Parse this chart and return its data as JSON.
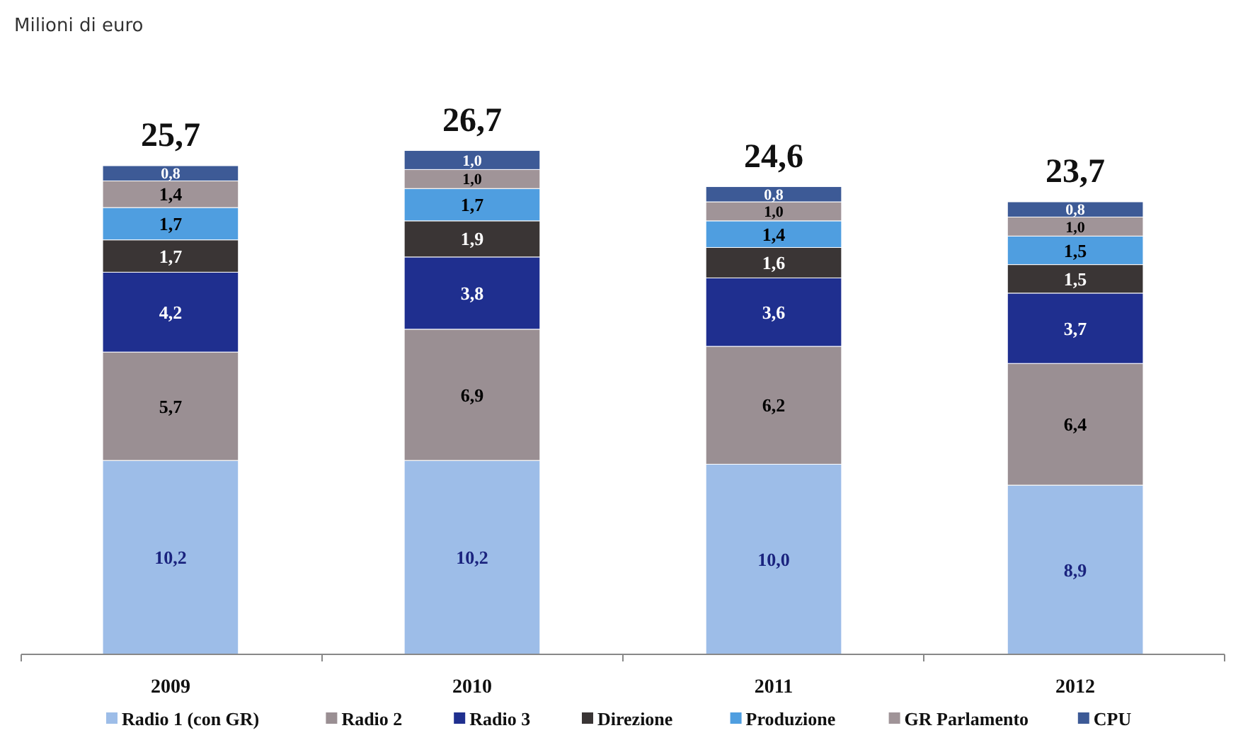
{
  "chart_data": {
    "type": "bar",
    "title": "Milioni di euro",
    "stacked": true,
    "legend": "bottom",
    "categories": [
      "2009",
      "2010",
      "2011",
      "2012"
    ],
    "series": [
      {
        "name": "Radio 1 (con GR)",
        "color": "#9dbde8",
        "values": [
          10.2,
          10.2,
          10.0,
          8.9
        ],
        "value_labels": [
          "10,2",
          "10,2",
          "10,0",
          "8,9"
        ]
      },
      {
        "name": "Radio 2",
        "color": "#9a8f93",
        "values": [
          5.7,
          6.9,
          6.2,
          6.4
        ],
        "value_labels": [
          "5,7",
          "6,9",
          "6,2",
          "6,4"
        ]
      },
      {
        "name": "Radio 3",
        "color": "#1f2f8f",
        "values": [
          4.2,
          3.8,
          3.6,
          3.7
        ],
        "value_labels": [
          "4,2",
          "3,8",
          "3,6",
          "3,7"
        ]
      },
      {
        "name": "Direzione",
        "color": "#3a3535",
        "values": [
          1.7,
          1.9,
          1.6,
          1.5
        ],
        "value_labels": [
          "1,7",
          "1,9",
          "1,6",
          "1,5"
        ]
      },
      {
        "name": "Produzione",
        "color": "#4f9ee0",
        "values": [
          1.7,
          1.7,
          1.4,
          1.5
        ],
        "value_labels": [
          "1,7",
          "1,7",
          "1,4",
          "1,5"
        ]
      },
      {
        "name": "GR Parlamento",
        "color": "#a09498",
        "values": [
          1.4,
          1.0,
          1.0,
          1.0
        ],
        "value_labels": [
          "1,4",
          "1,0",
          "1,0",
          "1,0"
        ]
      },
      {
        "name": "CPU",
        "color": "#3d5a96",
        "values": [
          0.8,
          1.0,
          0.8,
          0.8
        ],
        "value_labels": [
          "0,8",
          "1,0",
          "0,8",
          "0,8"
        ]
      }
    ],
    "totals": [
      "25,7",
      "26,7",
      "24,6",
      "23,7"
    ]
  }
}
